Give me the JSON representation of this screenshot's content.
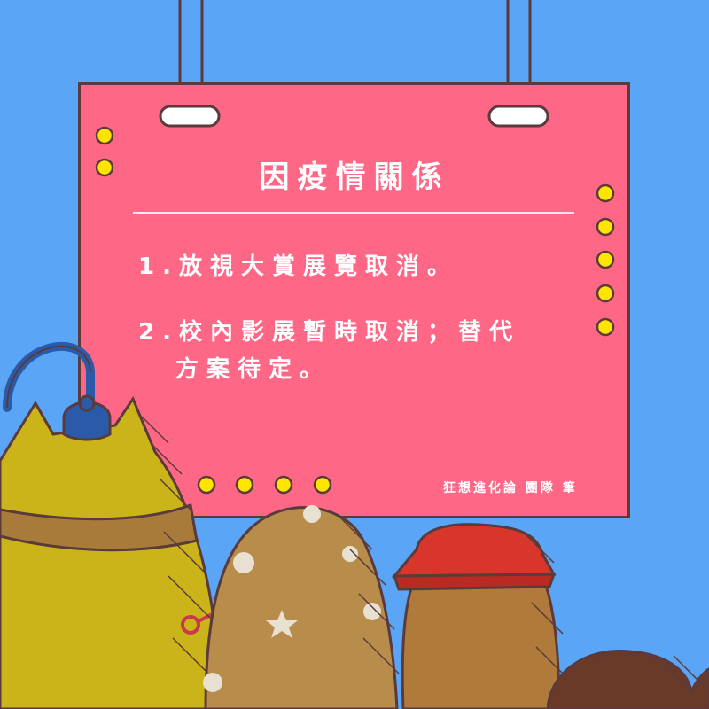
{
  "board": {
    "title": "因疫情關係",
    "items": [
      "1.放視大賞展覽取消。",
      "2.校內影展暫時取消；替代",
      "方案待定。"
    ],
    "credit": "狂想進化論 團隊 筆"
  },
  "colors": {
    "background": "#5aa5f5",
    "board": "#fe6886",
    "dots": "#ffe400",
    "outline": "#5a3a3a"
  }
}
